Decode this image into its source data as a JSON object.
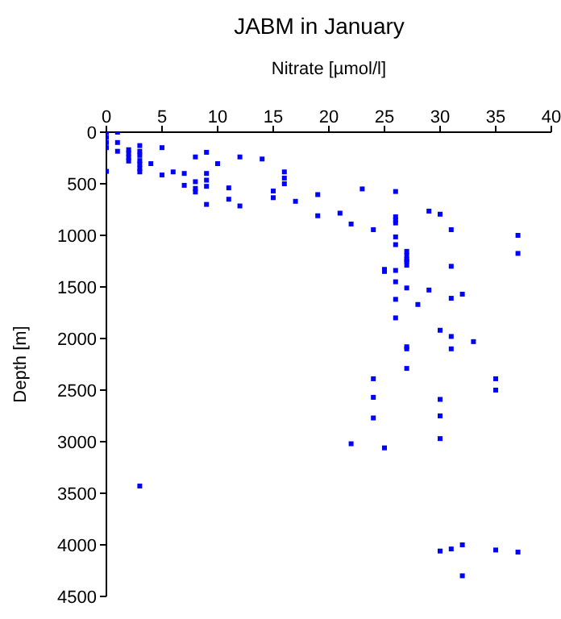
{
  "chart_data": {
    "type": "scatter",
    "title": "JABM in January",
    "xlabel": "Nitrate [µmol/l]",
    "ylabel": "Depth [m]",
    "xlim": [
      0,
      40
    ],
    "xticks": [
      0,
      5,
      10,
      15,
      20,
      25,
      30,
      35,
      40
    ],
    "ylim": [
      4500,
      0
    ],
    "yticks": [
      0,
      500,
      1000,
      1500,
      2000,
      2500,
      3000,
      3500,
      4000,
      4500
    ],
    "grid": false,
    "legend": false,
    "marker": "square",
    "series": [
      {
        "color": "#0000ff",
        "x": [
          0,
          0,
          0,
          0,
          0,
          1,
          1,
          1,
          2,
          2,
          2,
          2,
          3,
          3,
          3,
          3,
          3,
          3,
          3,
          4,
          5,
          5,
          6,
          7,
          7,
          8,
          8,
          8,
          8,
          9,
          9,
          9,
          9,
          9,
          10,
          11,
          11,
          12,
          12,
          14,
          15,
          15,
          16,
          16,
          16,
          17,
          19,
          19,
          21,
          22,
          23,
          24,
          26,
          26,
          26,
          26,
          26,
          26,
          27,
          27,
          27,
          29,
          30,
          31,
          37,
          37,
          26,
          26,
          26,
          26,
          25,
          25,
          27,
          27,
          27,
          27,
          27,
          27,
          29,
          28,
          30,
          30,
          30,
          31,
          31,
          31,
          31,
          32,
          33,
          24,
          24,
          24,
          35,
          35,
          30,
          30,
          22,
          25,
          3,
          31,
          32,
          32,
          35,
          37
        ],
        "values": [
          0,
          50,
          100,
          150,
          380,
          0,
          100,
          185,
          170,
          205,
          245,
          280,
          130,
          185,
          225,
          275,
          310,
          350,
          385,
          305,
          150,
          415,
          385,
          400,
          515,
          240,
          480,
          545,
          580,
          195,
          400,
          465,
          525,
          700,
          305,
          540,
          650,
          240,
          715,
          260,
          570,
          635,
          385,
          445,
          500,
          670,
          605,
          810,
          785,
          890,
          550,
          945,
          575,
          820,
          850,
          880,
          1015,
          1090,
          1155,
          1195,
          1235,
          765,
          795,
          945,
          1000,
          1175,
          1340,
          1450,
          1620,
          1800,
          1330,
          1350,
          1250,
          1290,
          1510,
          2080,
          2100,
          2290,
          1530,
          1670,
          1920,
          2590,
          2750,
          1300,
          1610,
          1980,
          2100,
          1570,
          2030,
          2390,
          2570,
          2770,
          2390,
          2500,
          2970,
          4060,
          3020,
          3060,
          3430,
          4040,
          4000,
          4300,
          4050,
          4070
        ]
      }
    ]
  }
}
